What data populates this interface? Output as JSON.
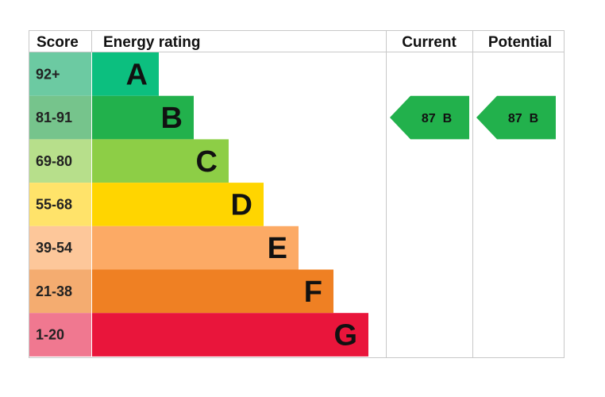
{
  "chart_data": {
    "type": "bar",
    "headers": {
      "score": "Score",
      "rating": "Energy rating",
      "current": "Current",
      "potential": "Potential"
    },
    "bands": [
      {
        "letter": "A",
        "range": "92+",
        "color": "#0cbf7f",
        "score_color": "#6ccaa2"
      },
      {
        "letter": "B",
        "range": "81-91",
        "color": "#22b14c",
        "score_color": "#76c48c"
      },
      {
        "letter": "C",
        "range": "69-80",
        "color": "#8dce46",
        "score_color": "#b7df8b"
      },
      {
        "letter": "D",
        "range": "55-68",
        "color": "#ffd500",
        "score_color": "#ffe36a"
      },
      {
        "letter": "E",
        "range": "39-54",
        "color": "#fcaa65",
        "score_color": "#fdc79a"
      },
      {
        "letter": "F",
        "range": "21-38",
        "color": "#ef8023",
        "score_color": "#f4ac70"
      },
      {
        "letter": "G",
        "range": "1-20",
        "color": "#e9153b",
        "score_color": "#f07890"
      }
    ],
    "current": {
      "value": 87,
      "band": "B",
      "label": "87  B",
      "color": "#22b14c"
    },
    "potential": {
      "value": 87,
      "band": "B",
      "label": "87  B",
      "color": "#22b14c"
    }
  }
}
